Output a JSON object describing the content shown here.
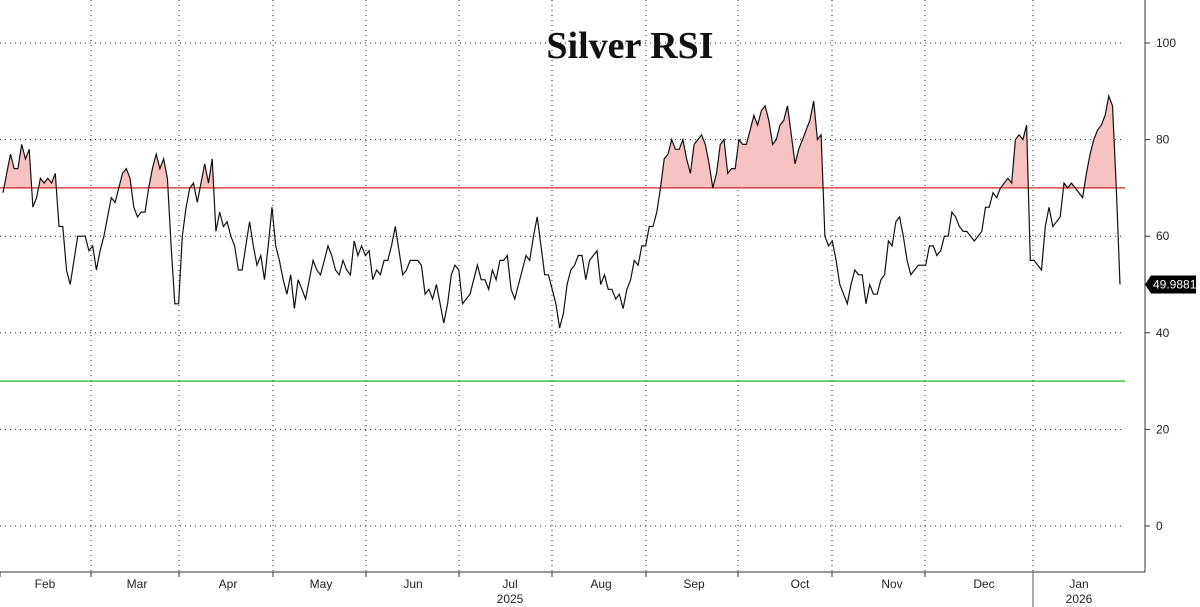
{
  "chart_data": {
    "type": "line",
    "title": "Silver RSI",
    "y_ticks": [
      0,
      20,
      40,
      60,
      80,
      100
    ],
    "ylim": [
      -10,
      110
    ],
    "overbought": 70,
    "oversold": 30,
    "last_value": "49.9881",
    "x_month_labels": [
      "Feb",
      "Mar",
      "Apr",
      "May",
      "Jun",
      "Jul",
      "Aug",
      "Sep",
      "Oct",
      "Nov",
      "Dec",
      "Jan"
    ],
    "x_year_labels": [
      "2025",
      "2026"
    ],
    "year_label_under": [
      "Jul",
      "Jan"
    ],
    "series": [
      {
        "values": [
          69,
          73,
          77,
          74,
          74,
          79,
          76,
          78,
          66,
          68,
          72,
          71,
          72,
          71,
          73,
          62,
          62,
          53,
          50,
          55,
          60,
          60,
          60,
          57,
          58,
          53,
          57,
          60,
          64,
          68,
          67,
          70,
          73,
          74,
          72,
          66,
          64,
          65,
          65,
          70,
          74,
          77,
          74,
          76,
          72,
          58,
          46,
          46,
          60,
          66,
          70,
          71,
          67,
          71,
          75,
          71,
          76,
          61,
          65,
          62,
          63,
          60,
          58,
          53,
          53,
          58,
          63,
          58,
          54,
          56,
          51,
          58,
          66,
          58,
          55,
          51,
          48,
          52,
          45,
          51,
          49,
          47,
          51,
          55,
          53,
          52,
          55,
          58,
          56,
          53,
          52,
          55,
          53,
          52,
          59,
          56,
          58,
          56,
          57,
          51,
          53,
          52,
          55,
          55,
          58,
          62,
          57,
          52,
          53,
          55,
          55,
          55,
          54,
          48,
          49,
          47,
          50,
          46,
          42,
          46,
          52,
          54,
          53,
          46,
          47,
          48,
          51,
          54,
          51,
          51,
          49,
          53,
          51,
          55,
          55,
          56,
          49,
          47,
          50,
          53,
          56,
          55,
          60,
          64,
          58,
          52,
          52,
          49,
          46,
          41,
          44,
          50,
          53,
          54,
          56,
          56,
          51,
          55,
          56,
          57,
          50,
          52,
          49,
          49,
          47,
          48,
          45,
          49,
          51,
          55,
          54,
          58,
          58,
          62,
          62,
          65,
          70,
          76,
          77,
          80,
          78,
          78,
          80,
          76,
          73,
          79,
          80,
          81,
          79,
          75,
          70,
          73,
          79,
          80,
          73,
          74,
          74,
          80,
          79,
          79,
          82,
          85,
          83,
          86,
          87,
          84,
          79,
          80,
          83,
          84,
          87,
          81,
          75,
          78,
          80,
          82,
          84,
          88,
          80,
          81,
          60,
          58,
          59,
          55,
          50,
          48,
          46,
          50,
          53,
          52,
          52,
          46,
          50,
          48,
          48,
          51,
          52,
          59,
          58,
          63,
          64,
          60,
          55,
          52,
          53,
          54,
          54,
          54,
          58,
          58,
          56,
          57,
          60,
          60,
          65,
          64,
          62,
          61,
          61,
          60,
          59,
          60,
          61,
          66,
          66,
          69,
          68,
          70,
          71,
          72,
          71,
          80,
          81,
          80,
          83,
          55,
          55,
          54,
          53,
          62,
          66,
          62,
          63,
          64,
          71,
          70,
          71,
          70,
          69,
          68,
          73,
          77,
          80,
          82,
          83,
          85,
          89,
          87,
          70,
          50
        ]
      }
    ],
    "colors": {
      "line": "#111111",
      "overbought_line": "#d62020",
      "oversold_line": "#1fb51f",
      "fill": "#f7c2c2",
      "grid": "#222222",
      "last_label_bg": "#000000"
    },
    "grid": true
  }
}
